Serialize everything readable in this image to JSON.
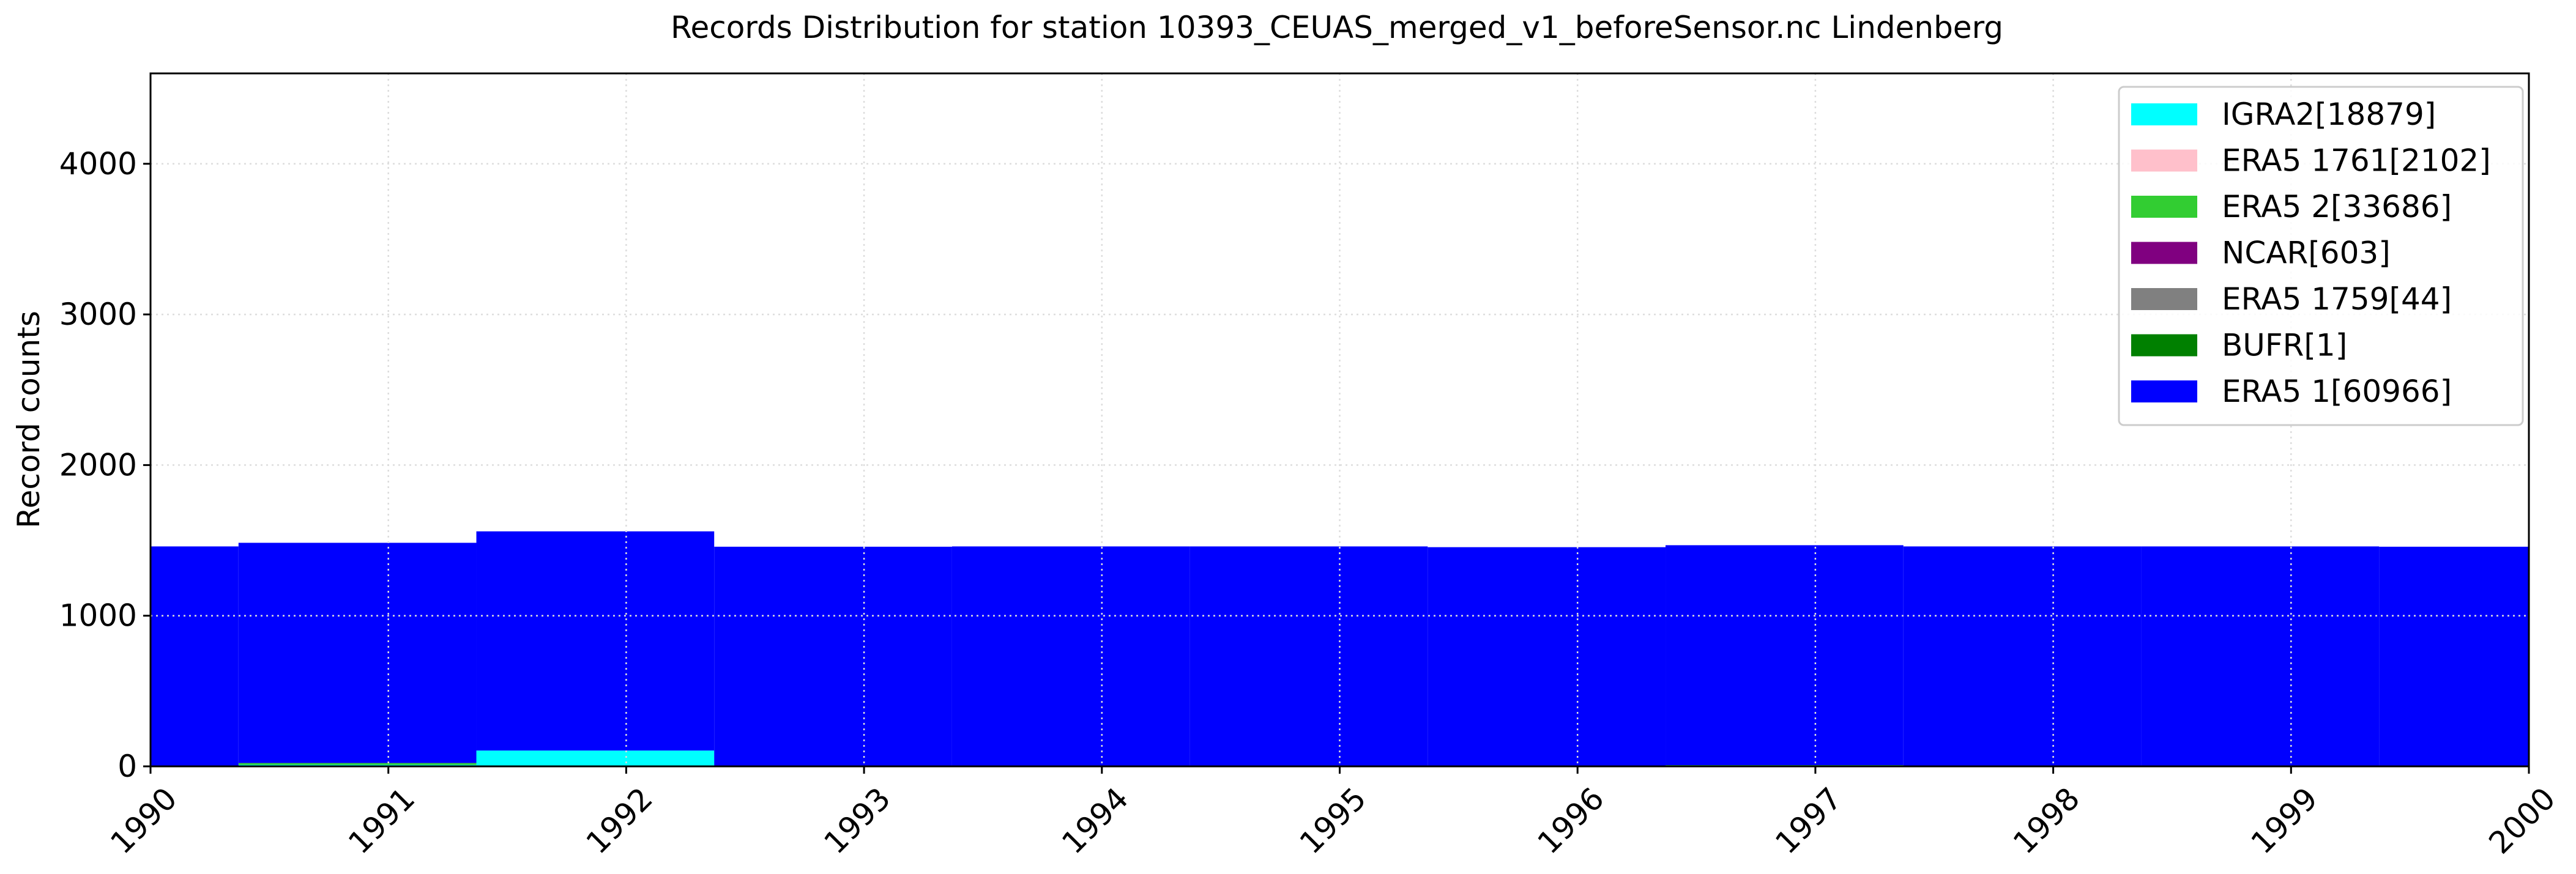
{
  "chart_data": {
    "type": "bar",
    "title": "Records Distribution for station 10393_CEUAS_merged_v1_beforeSensor.nc Lindenberg",
    "xlabel": "",
    "ylabel": "Record counts",
    "xlim": [
      1990,
      2000
    ],
    "ylim": [
      0,
      4600
    ],
    "x_ticks": [
      "1990",
      "1991",
      "1992",
      "1993",
      "1994",
      "1995",
      "1996",
      "1997",
      "1998",
      "1999",
      "2000"
    ],
    "y_ticks": [
      "0",
      "1000",
      "2000",
      "3000",
      "4000"
    ],
    "grid": true,
    "legend_position": "top-right",
    "stacked": true,
    "bins": [
      {
        "start": 1989.63,
        "end": 1990.37
      },
      {
        "start": 1990.37,
        "end": 1991.37
      },
      {
        "start": 1991.37,
        "end": 1992.37
      },
      {
        "start": 1992.37,
        "end": 1993.37
      },
      {
        "start": 1993.37,
        "end": 1994.37
      },
      {
        "start": 1994.37,
        "end": 1995.37
      },
      {
        "start": 1995.37,
        "end": 1996.37
      },
      {
        "start": 1996.37,
        "end": 1997.37
      },
      {
        "start": 1997.37,
        "end": 1998.37
      },
      {
        "start": 1998.37,
        "end": 1999.37
      },
      {
        "start": 1999.37,
        "end": 2000.37
      }
    ],
    "series": [
      {
        "name": "IGRA2[18879]",
        "color": "#00ffff",
        "values": [
          0,
          10,
          105,
          0,
          0,
          0,
          0,
          0,
          0,
          0,
          0
        ]
      },
      {
        "name": "ERA5 1761[2102]",
        "color": "#ffc0cb",
        "values": [
          0,
          0,
          0,
          0,
          0,
          0,
          0,
          0,
          0,
          0,
          0
        ]
      },
      {
        "name": "ERA5 2[33686]",
        "color": "#32cd32",
        "values": [
          0,
          12,
          0,
          0,
          0,
          0,
          0,
          8,
          0,
          0,
          0
        ]
      },
      {
        "name": "NCAR[603]",
        "color": "#800080",
        "values": [
          0,
          0,
          0,
          0,
          0,
          0,
          0,
          0,
          0,
          0,
          0
        ]
      },
      {
        "name": "ERA5 1759[44]",
        "color": "#808080",
        "values": [
          0,
          0,
          0,
          0,
          0,
          0,
          0,
          0,
          0,
          0,
          0
        ]
      },
      {
        "name": "BUFR[1]",
        "color": "#008000",
        "values": [
          0,
          0,
          0,
          0,
          0,
          0,
          0,
          0,
          0,
          0,
          0
        ]
      },
      {
        "name": "ERA5 1[60966]",
        "color": "#0000ff",
        "values": [
          1460,
          1462,
          1455,
          1458,
          1460,
          1460,
          1455,
          1460,
          1460,
          1460,
          1458
        ]
      }
    ]
  }
}
